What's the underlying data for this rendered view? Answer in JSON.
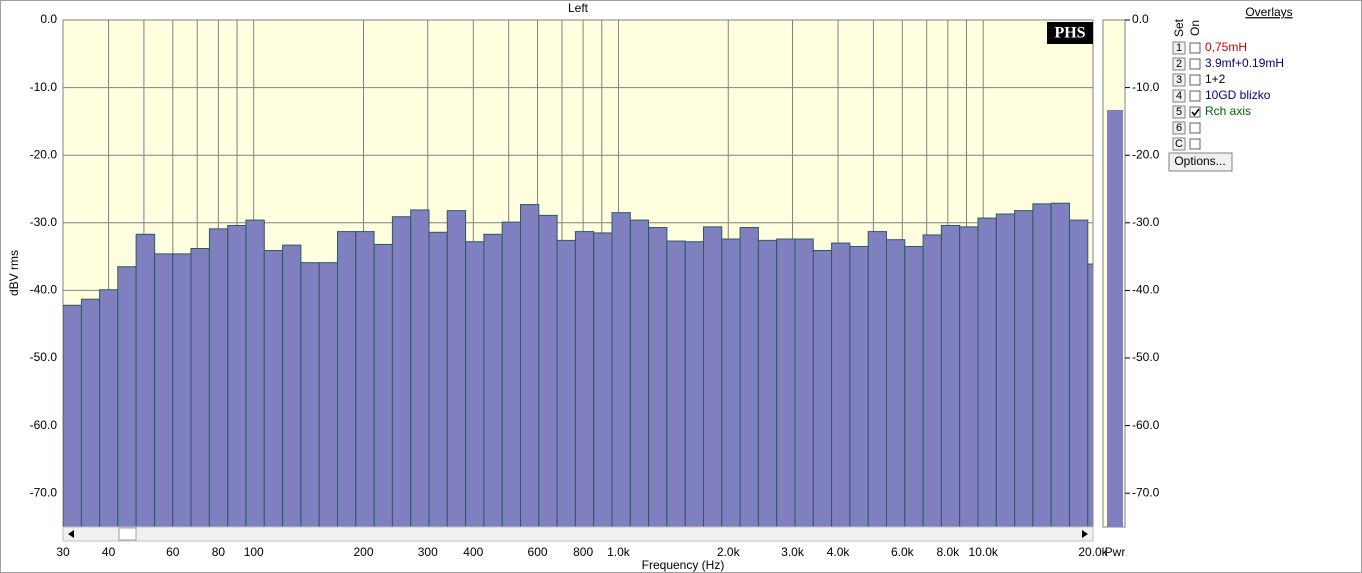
{
  "chart_data": {
    "type": "histogram",
    "title": "Left",
    "x_label": "Frequency (Hz)",
    "y_label": "dBV rms",
    "logo": "PHS",
    "xscale": "log",
    "xlim": [
      30,
      20000
    ],
    "ylim": [
      -75,
      0
    ],
    "grid": true,
    "background": "#ffffe0",
    "color": "#8080c0",
    "edge_color": "#2b5a5a",
    "bins": [
      30,
      33.7,
      37.8,
      42.4,
      47.6,
      53.5,
      60,
      67.3,
      75.6,
      84.9,
      95.2,
      106.9,
      120,
      134.7,
      151.2,
      169.7,
      190.5,
      213.8,
      240,
      269.4,
      302.4,
      339.4,
      381,
      427.7,
      480,
      538.8,
      604.8,
      678.9,
      762,
      855.3,
      960,
      1077.6,
      1209.5,
      1357.6,
      1523.9,
      1710.6,
      1920,
      2155.1,
      2419,
      2715.3,
      3047.8,
      3421.1,
      3840,
      4310.3,
      4838.1,
      5430.6,
      6095.6,
      6842.2,
      7680,
      8620.6,
      9676.3,
      10861.1,
      12191.3,
      13684.3,
      15360,
      17241.2,
      19352.5,
      21722
    ],
    "values": [
      -42.2,
      -41.3,
      -39.9,
      -36.5,
      -31.7,
      -34.6,
      -34.6,
      -33.8,
      -30.9,
      -30.4,
      -29.6,
      -34.1,
      -33.3,
      -35.9,
      -35.9,
      -31.3,
      -31.3,
      -33.2,
      -29.1,
      -28.1,
      -31.4,
      -28.2,
      -32.8,
      -31.7,
      -29.9,
      -27.3,
      -28.9,
      -32.6,
      -31.3,
      -31.5,
      -28.5,
      -29.6,
      -30.7,
      -32.7,
      -32.8,
      -30.6,
      -32.4,
      -30.7,
      -32.6,
      -32.4,
      -32.4,
      -34.1,
      -33.0,
      -33.5,
      -31.3,
      -32.5,
      -33.5,
      -31.8,
      -30.4,
      -30.6,
      -29.3,
      -28.7,
      -28.2,
      -27.2,
      -27.1,
      -29.6,
      -36.1
    ],
    "xticks": [
      30,
      40,
      60,
      80,
      100,
      200,
      300,
      400,
      600,
      800,
      {
        "value": 1000,
        "label": "1.0k"
      },
      {
        "value": 2000,
        "label": "2.0k"
      },
      {
        "value": 3000,
        "label": "3.0k"
      },
      {
        "value": 4000,
        "label": "4.0k"
      },
      {
        "value": 6000,
        "label": "6.0k"
      },
      {
        "value": 8000,
        "label": "8.0k"
      },
      {
        "value": 10000,
        "label": "10.0k"
      },
      {
        "value": 20000,
        "label": "20.0k"
      }
    ],
    "minor_xticks": [
      50,
      70,
      90,
      500,
      700,
      900,
      5000,
      7000,
      9000
    ],
    "yticks": [
      {
        "value": 0,
        "label": "0.0"
      },
      {
        "value": -10,
        "label": "-10.0"
      },
      {
        "value": -20,
        "label": "-20.0"
      },
      {
        "value": -30,
        "label": "-30.0"
      },
      {
        "value": -40,
        "label": "-40.0"
      },
      {
        "value": -50,
        "label": "-50.0"
      },
      {
        "value": -60,
        "label": "-60.0"
      },
      {
        "value": -70,
        "label": "-70.0"
      }
    ],
    "power_meter": {
      "label": "Pwr",
      "value": -13.3,
      "color": "#8080c0"
    }
  },
  "overlays": {
    "title": "Overlays",
    "header": [
      "Set",
      "On"
    ],
    "rows": [
      {
        "set": "1",
        "on": false,
        "label": "0,75mH",
        "color": "#cc0000"
      },
      {
        "set": "2",
        "on": false,
        "label": "3.9mf+0.19mH",
        "color": "#000080"
      },
      {
        "set": "3",
        "on": false,
        "label": "1+2",
        "color": "#000000"
      },
      {
        "set": "4",
        "on": false,
        "label": "10GD blizko",
        "color": "#000080"
      },
      {
        "set": "5",
        "on": true,
        "label": "Rch axis",
        "color": "#006000"
      },
      {
        "set": "6",
        "on": false
      },
      {
        "set": "C",
        "on": false
      }
    ],
    "button": "Options..."
  }
}
